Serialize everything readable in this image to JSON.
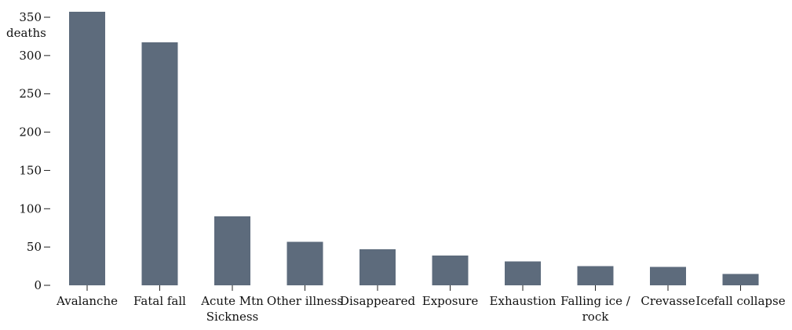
{
  "chart_data": {
    "type": "bar",
    "title": "",
    "xlabel": "",
    "ylabel": "deaths",
    "categories": [
      [
        "Avalanche"
      ],
      [
        "Fatal fall"
      ],
      [
        "Acute Mtn",
        "Sickness"
      ],
      [
        "Other illness"
      ],
      [
        "Disappeared"
      ],
      [
        "Exposure"
      ],
      [
        "Exhaustion"
      ],
      [
        "Falling ice /",
        "rock"
      ],
      [
        "Crevasse"
      ],
      [
        "Icefall collapse"
      ]
    ],
    "values": [
      357,
      317,
      90,
      57,
      47,
      39,
      31,
      25,
      24,
      15
    ],
    "ylim": [
      0,
      350
    ],
    "yticks": [
      0,
      50,
      100,
      150,
      200,
      250,
      300,
      350
    ],
    "grid": false,
    "bar_color": "#5d6b7c",
    "axis_color": "#222222",
    "text_color": "#111111"
  }
}
